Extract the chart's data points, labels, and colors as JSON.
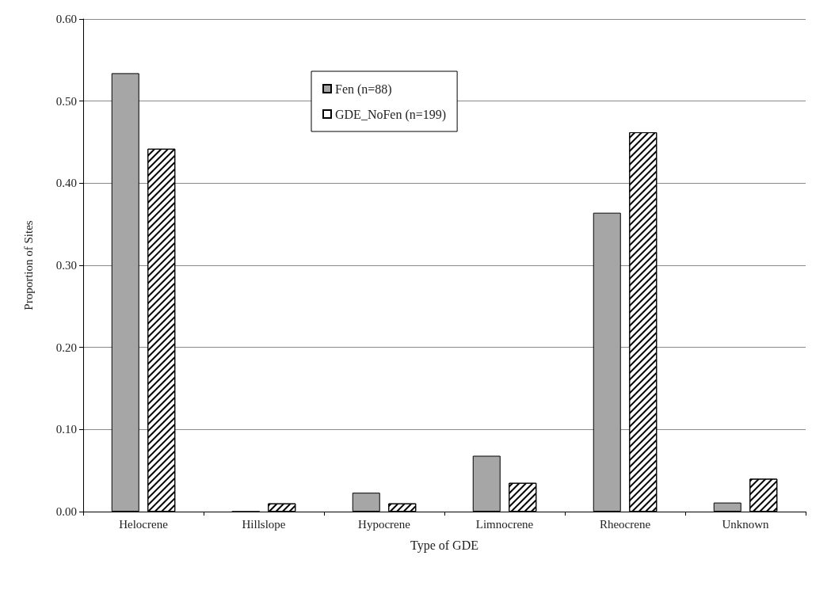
{
  "chart_data": {
    "type": "bar",
    "xlabel": "Type of GDE",
    "ylabel": "Proportion of Sites",
    "categories": [
      "Helocrene",
      "Hillslope",
      "Hypocrene",
      "Limnocrene",
      "Rheocrene",
      "Unknown"
    ],
    "series": [
      {
        "name": "Fen (n=88)",
        "color": "#a6a6a6",
        "values": [
          0.534,
          0,
          0.023,
          0.068,
          0.364,
          0.011
        ]
      },
      {
        "name": "GDE_NoFen (n=199)",
        "color": "#ffffff",
        "values": [
          0.442,
          0.01,
          0.01,
          0.035,
          0.462,
          0.04
        ]
      }
    ],
    "ylim": [
      0,
      0.6
    ],
    "yticks": [
      {
        "value": 0,
        "label": "0.00"
      },
      {
        "value": 0.1,
        "label": "0.10"
      },
      {
        "value": 0.2,
        "label": "0.20"
      },
      {
        "value": 0.3,
        "label": "0.30"
      },
      {
        "value": 0.4,
        "label": "0.40"
      },
      {
        "value": 0.5,
        "label": "0.50"
      },
      {
        "value": 0.6,
        "label": "0.60"
      }
    ],
    "grid": "y",
    "legend": "top"
  }
}
